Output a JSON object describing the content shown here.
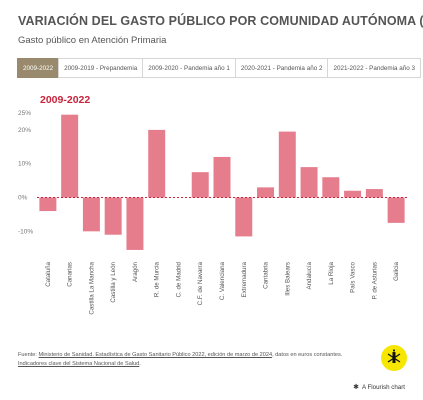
{
  "header": {
    "title": "VARIACIÓN DEL GASTO PÚBLICO POR COMUNIDAD AUTÓNOMA (%)",
    "subtitle": "Gasto público en Atención Primaria"
  },
  "tabs": [
    {
      "label": "2009-2022",
      "active": true
    },
    {
      "label": "2009-2019 - Prepandemia",
      "active": false
    },
    {
      "label": "2009-2020 - Pandemia año 1",
      "active": false
    },
    {
      "label": "2020-2021 - Pandemia año 2",
      "active": false
    },
    {
      "label": "2021-2022 - Pandemia año 3",
      "active": false
    }
  ],
  "chart_data": {
    "type": "bar",
    "title": "2009-2022",
    "categories": [
      "Cataluña",
      "Canarias",
      "Castilla La Mancha",
      "Castilla y León",
      "Aragón",
      "R. de Murcia",
      "C. de Madrid",
      "C.F. de Navarra",
      "C. Valenciana",
      "Extremadura",
      "Cantabria",
      "Illes Balears",
      "Andalucía",
      "La Rioja",
      "País Vasco",
      "P. de Asturias",
      "Galicia"
    ],
    "values": [
      -4,
      24.5,
      -10,
      -11,
      -15.5,
      20,
      0,
      7.5,
      12,
      -11.5,
      3,
      19.5,
      9,
      6,
      2,
      2.5,
      -7.5
    ],
    "yticks": [
      "25%",
      "20%",
      "10%",
      "0%",
      "-10%"
    ],
    "ytick_values": [
      25,
      20,
      10,
      0,
      -10
    ],
    "ylim": [
      -17,
      25
    ],
    "zero_line": "dashed",
    "bar_color": "#e57d8c",
    "zero_line_color": "#c8243c",
    "title_color": "#c8243c"
  },
  "footer": {
    "prefix": "Fuente: ",
    "source_link": "Ministerio de Sanidad. Estadística de Gasto Sanitario Público 2022, edición de marzo de 2024",
    "middle": ", datos en euros constantes. ",
    "second_link": "Indicadores clave del Sistema Nacional de Salud",
    "suffix": "."
  },
  "branding": {
    "flourish_label": "A Flourish chart",
    "logo_icon": "amnesty-candle-icon"
  }
}
